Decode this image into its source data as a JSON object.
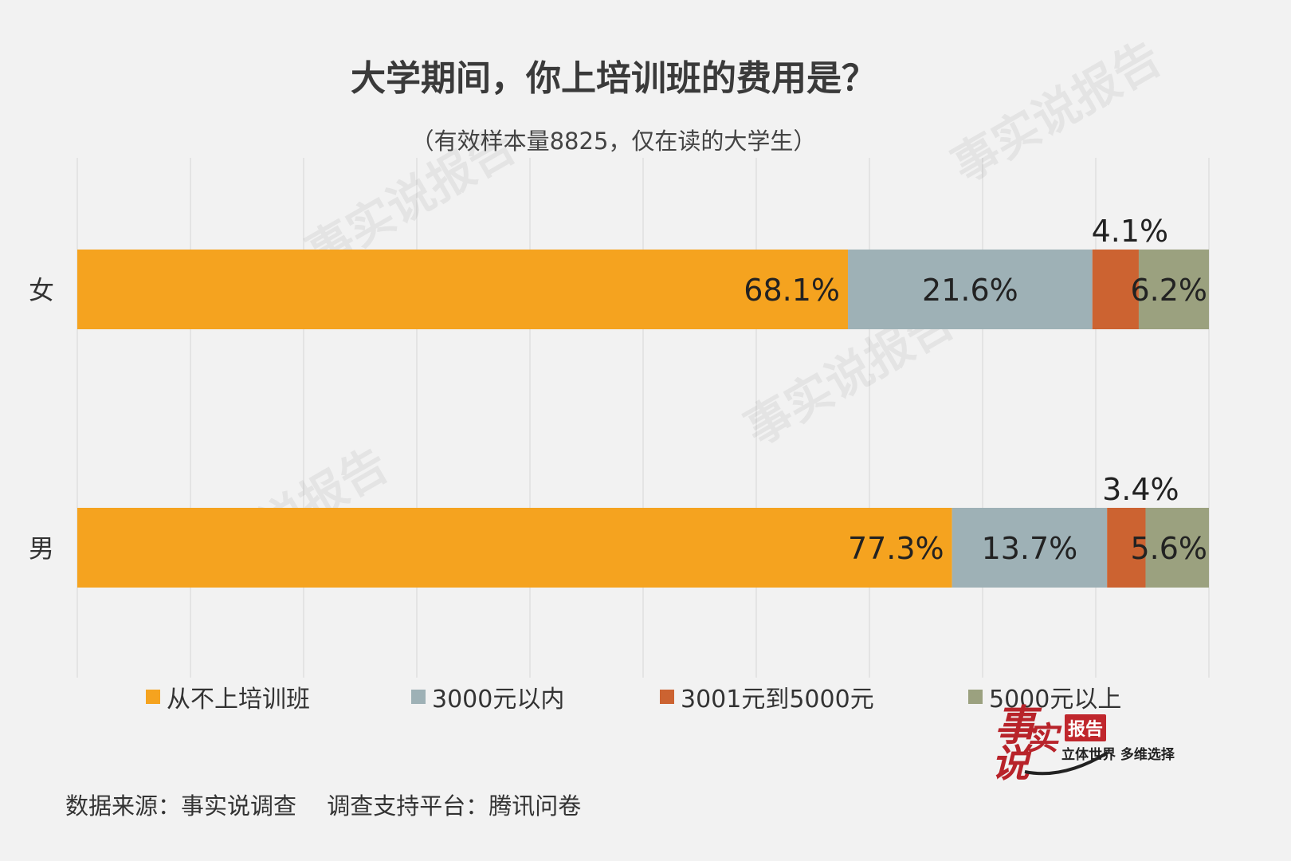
{
  "header": {
    "title": "大学期间，你上培训班的费用是？",
    "subtitle": "（有效样本量8825，仅在读的大学生）"
  },
  "chart_data": {
    "type": "bar",
    "orientation": "horizontal",
    "stacked": "percent",
    "categories": [
      "女",
      "男"
    ],
    "series": [
      {
        "name": "从不上培训班",
        "color": "#f5a31f",
        "values": [
          68.1,
          77.3
        ],
        "labels": [
          "68.1%",
          "77.3%"
        ]
      },
      {
        "name": "3000元以内",
        "color": "#9eb1b6",
        "values": [
          21.6,
          13.7
        ],
        "labels": [
          "21.6%",
          "13.7%"
        ]
      },
      {
        "name": "3001元到5000元",
        "color": "#cc6331",
        "values": [
          4.1,
          3.4
        ],
        "labels": [
          "4.1%",
          "3.4%"
        ]
      },
      {
        "name": "5000元以上",
        "color": "#9ba17f",
        "values": [
          6.2,
          5.6
        ],
        "labels": [
          "6.2%",
          "5.6%"
        ]
      }
    ],
    "xlim": [
      0,
      100
    ],
    "grid": true,
    "legend_position": "bottom"
  },
  "footer": {
    "source": "数据来源：事实说调查　 调查支持平台：腾讯问卷"
  },
  "logo": {
    "text_main": "事实说",
    "badge": "报告",
    "slogan": "立体世界 多维选择"
  }
}
